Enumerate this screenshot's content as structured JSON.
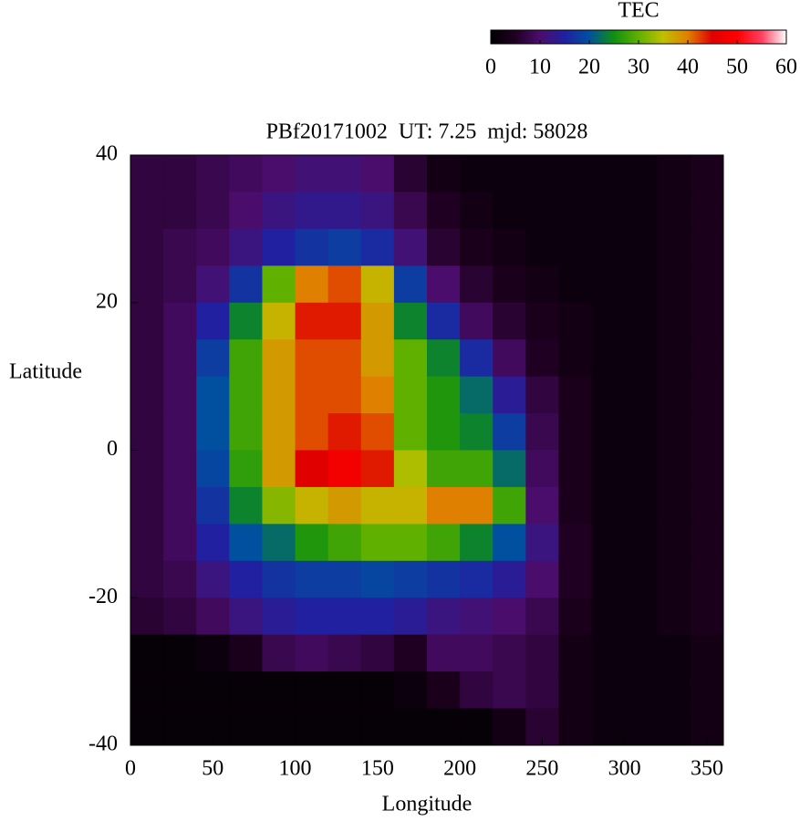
{
  "chart_data": {
    "type": "heatmap",
    "title": "PBf20171002  UT: 7.25  mjd: 58028",
    "x_label": "Longitude",
    "y_label": "Latitude",
    "colorbar_label": "TEC",
    "x": [
      10,
      30,
      50,
      70,
      90,
      110,
      130,
      150,
      170,
      190,
      210,
      230,
      250,
      270,
      290,
      310,
      330,
      350
    ],
    "y": [
      37.5,
      32.5,
      27.5,
      22.5,
      17.5,
      12.5,
      7.5,
      2.5,
      -2.5,
      -7.5,
      -12.5,
      -17.5,
      -22.5,
      -27.5,
      -32.5,
      -37.5
    ],
    "cell_width": 20,
    "cell_height": 5,
    "values": [
      [
        7,
        7,
        8,
        9,
        10,
        11,
        11,
        10,
        6,
        3,
        2,
        2,
        2,
        2,
        2,
        2,
        3,
        4
      ],
      [
        7,
        7,
        8,
        10,
        12,
        13,
        13,
        12,
        8,
        5,
        3,
        2,
        2,
        2,
        2,
        2,
        3,
        4
      ],
      [
        7,
        8,
        9,
        12,
        15,
        17,
        18,
        16,
        11,
        6,
        4,
        3,
        2,
        2,
        2,
        2,
        3,
        4
      ],
      [
        7,
        8,
        11,
        17,
        30,
        40,
        42,
        36,
        18,
        10,
        6,
        4,
        3,
        2,
        2,
        2,
        3,
        4
      ],
      [
        7,
        9,
        15,
        24,
        36,
        44,
        44,
        38,
        24,
        16,
        9,
        6,
        4,
        3,
        2,
        2,
        3,
        4
      ],
      [
        7,
        9,
        18,
        28,
        38,
        42,
        42,
        38,
        30,
        24,
        16,
        9,
        5,
        3,
        2,
        2,
        3,
        4
      ],
      [
        7,
        9,
        20,
        28,
        38,
        42,
        42,
        40,
        30,
        26,
        22,
        14,
        7,
        4,
        2,
        2,
        3,
        4
      ],
      [
        7,
        9,
        20,
        28,
        38,
        42,
        44,
        42,
        30,
        26,
        24,
        18,
        8,
        4,
        2,
        2,
        3,
        4
      ],
      [
        7,
        9,
        19,
        27,
        38,
        45,
        48,
        44,
        34,
        28,
        28,
        22,
        9,
        4,
        2,
        2,
        3,
        4
      ],
      [
        7,
        9,
        17,
        24,
        32,
        36,
        38,
        36,
        36,
        40,
        40,
        28,
        10,
        4,
        2,
        2,
        3,
        4
      ],
      [
        7,
        9,
        15,
        20,
        22,
        26,
        28,
        30,
        30,
        28,
        24,
        20,
        12,
        5,
        2,
        2,
        3,
        4
      ],
      [
        7,
        8,
        12,
        15,
        17,
        18,
        18,
        19,
        18,
        17,
        16,
        14,
        10,
        5,
        2,
        2,
        3,
        4
      ],
      [
        6,
        7,
        9,
        12,
        14,
        15,
        15,
        15,
        14,
        12,
        11,
        10,
        8,
        4,
        2,
        2,
        3,
        4
      ],
      [
        1,
        1,
        2,
        4,
        8,
        9,
        8,
        7,
        5,
        9,
        9,
        8,
        7,
        3,
        2,
        2,
        2,
        3
      ],
      [
        1,
        1,
        1,
        1,
        1,
        1,
        1,
        1,
        2,
        4,
        7,
        8,
        7,
        3,
        2,
        2,
        2,
        3
      ],
      [
        1,
        1,
        1,
        1,
        1,
        1,
        1,
        1,
        1,
        1,
        1,
        3,
        6,
        3,
        2,
        2,
        2,
        3
      ]
    ],
    "xlim": [
      0,
      360
    ],
    "ylim": [
      -40,
      40
    ],
    "xticks": [
      0,
      50,
      100,
      150,
      200,
      250,
      300,
      350
    ],
    "yticks": [
      -40,
      -20,
      0,
      20,
      40
    ],
    "colorbar_lim": [
      0,
      60
    ],
    "colorbar_ticks": [
      0,
      10,
      20,
      30,
      40,
      50,
      60
    ],
    "colorscale": [
      [
        0,
        "#000000"
      ],
      [
        5,
        "#200022"
      ],
      [
        10,
        "#4b0d6b"
      ],
      [
        15,
        "#2020a0"
      ],
      [
        20,
        "#0050a0"
      ],
      [
        25,
        "#109010"
      ],
      [
        30,
        "#60b000"
      ],
      [
        35,
        "#c0c000"
      ],
      [
        40,
        "#e08000"
      ],
      [
        45,
        "#e00000"
      ],
      [
        50,
        "#ff0000"
      ],
      [
        55,
        "#ff4060"
      ],
      [
        60,
        "#ffffff"
      ]
    ]
  }
}
